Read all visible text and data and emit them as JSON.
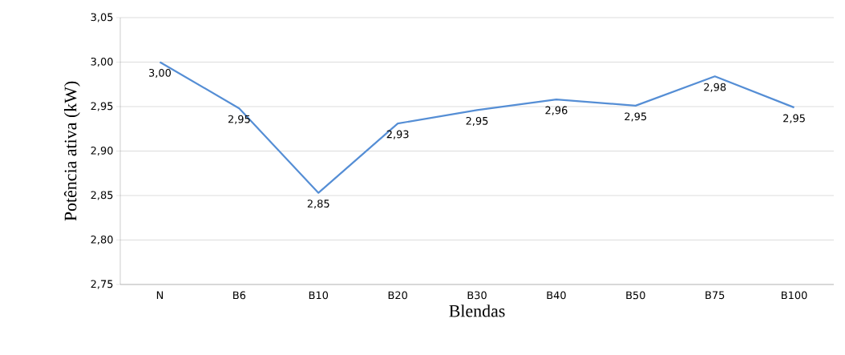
{
  "chart_data": {
    "type": "line",
    "xlabel": "Blendas",
    "ylabel": "Potência ativa (kW)",
    "categories": [
      "N",
      "B6",
      "B10",
      "B20",
      "B30",
      "B40",
      "B50",
      "B75",
      "B100"
    ],
    "series": [
      {
        "color": "#558ed5",
        "values": [
          3.0,
          2.948,
          2.853,
          2.931,
          2.946,
          2.958,
          2.951,
          2.984,
          2.949
        ],
        "value_labels": [
          "3,00",
          "2,95",
          "2,85",
          "2,93",
          "2,95",
          "2,96",
          "2,95",
          "2,98",
          "2,95"
        ]
      }
    ],
    "ylim": [
      2.75,
      3.05
    ],
    "yticks": [
      {
        "value": 2.75,
        "label": "2,75"
      },
      {
        "value": 2.8,
        "label": "2,80"
      },
      {
        "value": 2.85,
        "label": "2,85"
      },
      {
        "value": 2.9,
        "label": "2,90"
      },
      {
        "value": 2.95,
        "label": "2,95"
      },
      {
        "value": 3.0,
        "label": "3,00"
      },
      {
        "value": 3.05,
        "label": "3,05"
      }
    ],
    "grid": "y",
    "legend": false,
    "marker": "none",
    "line_style": "solid"
  }
}
